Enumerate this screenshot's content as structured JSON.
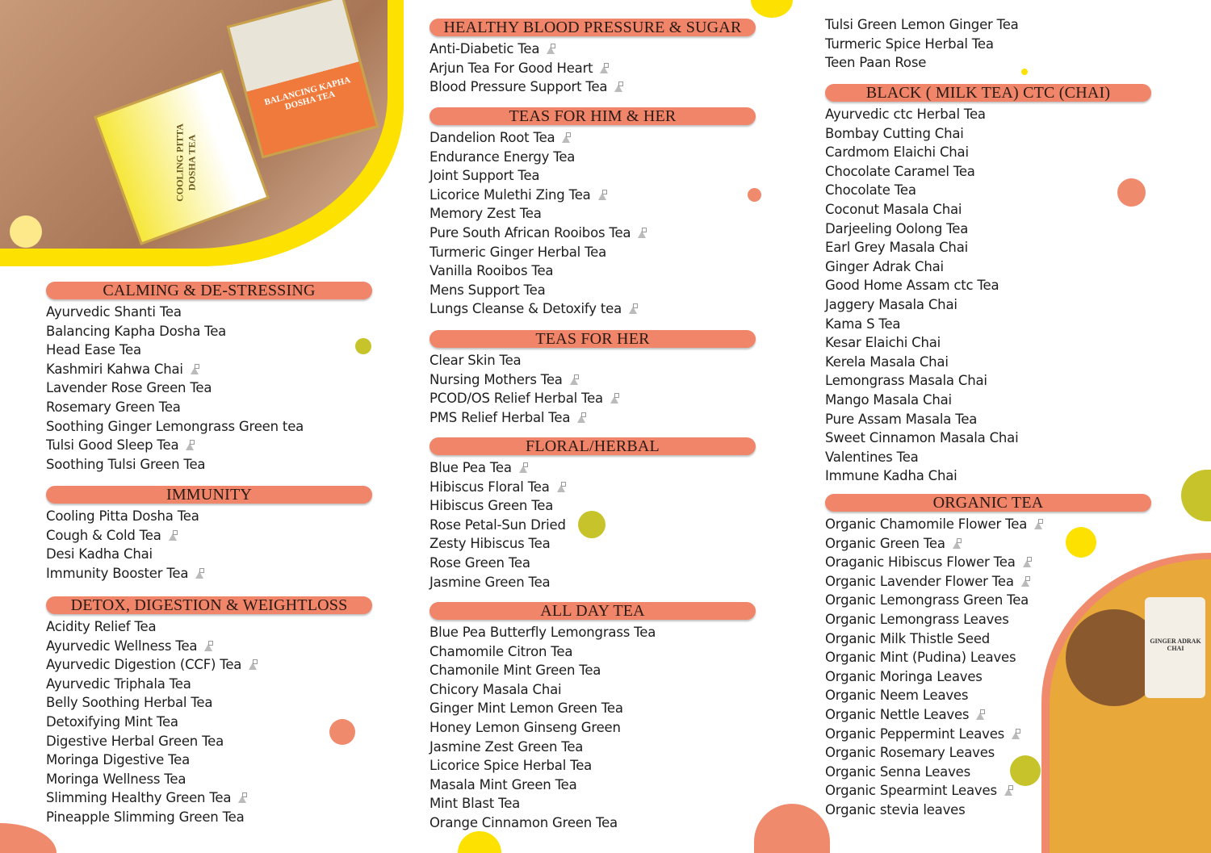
{
  "photos": {
    "top_left_tin1": "BALANCING KAPHA DOSHA TEA",
    "top_left_tin2": "COOLING PITTA DOSHA TEA",
    "bottom_right_jar": "GINGER ADRAK CHAI"
  },
  "colors": {
    "header": "#f0856a",
    "yellow": "#fde100",
    "olive": "#c7c32a",
    "coral": "#f08a6c"
  },
  "columns": [
    {
      "sections": [
        {
          "title": "CALMING & DE-STRESSING",
          "items": [
            {
              "name": "Ayurvedic Shanti Tea"
            },
            {
              "name": "Balancing Kapha Dosha Tea"
            },
            {
              "name": "Head Ease Tea"
            },
            {
              "name": "Kashmiri Kahwa Chai",
              "bag": true
            },
            {
              "name": "Lavender Rose Green Tea"
            },
            {
              "name": "Rosemary Green Tea"
            },
            {
              "name": "Soothing Ginger Lemongrass Green tea"
            },
            {
              "name": "Tulsi Good Sleep Tea",
              "bag": true
            },
            {
              "name": "Soothing Tulsi Green Tea"
            }
          ]
        },
        {
          "title": "IMMUNITY",
          "items": [
            {
              "name": "Cooling Pitta Dosha Tea"
            },
            {
              "name": "Cough & Cold Tea",
              "bag": true
            },
            {
              "name": "Desi Kadha Chai"
            },
            {
              "name": "Immunity Booster Tea",
              "bag": true
            }
          ]
        },
        {
          "title": "DETOX, DIGESTION & WEIGHTLOSS",
          "items": [
            {
              "name": "Acidity Relief Tea"
            },
            {
              "name": "Ayurvedic Wellness Tea",
              "bag": true
            },
            {
              "name": "Ayurvedic Digestion (CCF) Tea",
              "bag": true
            },
            {
              "name": "Ayurvedic Triphala Tea"
            },
            {
              "name": "Belly Soothing Herbal Tea"
            },
            {
              "name": "Detoxifying Mint Tea"
            },
            {
              "name": "Digestive Herbal Green Tea"
            },
            {
              "name": "Moringa Digestive Tea"
            },
            {
              "name": "Moringa Wellness Tea"
            },
            {
              "name": "Slimming Healthy Green Tea",
              "bag": true
            },
            {
              "name": "Pineapple Slimming Green Tea"
            }
          ]
        }
      ]
    },
    {
      "sections": [
        {
          "title": "HEALTHY BLOOD PRESSURE & SUGAR",
          "items": [
            {
              "name": "Anti-Diabetic Tea",
              "bag": true
            },
            {
              "name": "Arjun Tea For Good Heart",
              "bag": true
            },
            {
              "name": "Blood Pressure Support Tea",
              "bag": true
            }
          ]
        },
        {
          "title": "TEAS FOR HIM & HER",
          "items": [
            {
              "name": "Dandelion Root Tea",
              "bag": true
            },
            {
              "name": "Endurance Energy Tea"
            },
            {
              "name": "Joint Support Tea"
            },
            {
              "name": "Licorice Mulethi Zing Tea",
              "bag": true
            },
            {
              "name": "Memory Zest Tea"
            },
            {
              "name": "Pure South African Rooibos Tea",
              "bag": true
            },
            {
              "name": "Turmeric Ginger Herbal Tea"
            },
            {
              "name": "Vanilla Rooibos Tea"
            },
            {
              "name": "Mens Support Tea"
            },
            {
              "name": "Lungs Cleanse & Detoxify tea",
              "bag": true
            }
          ]
        },
        {
          "title": "TEAS FOR HER",
          "items": [
            {
              "name": "Clear Skin Tea"
            },
            {
              "name": "Nursing Mothers Tea",
              "bag": true
            },
            {
              "name": "PCOD/OS Relief Herbal Tea",
              "bag": true
            },
            {
              "name": "PMS Relief Herbal Tea",
              "bag": true
            }
          ]
        },
        {
          "title": "FLORAL/HERBAL",
          "items": [
            {
              "name": "Blue Pea Tea",
              "bag": true
            },
            {
              "name": "Hibiscus Floral Tea",
              "bag": true
            },
            {
              "name": "Hibiscus Green Tea"
            },
            {
              "name": "Rose Petal-Sun Dried"
            },
            {
              "name": "Zesty Hibiscus Tea"
            },
            {
              "name": "Rose Green Tea"
            },
            {
              "name": "Jasmine Green Tea"
            }
          ]
        },
        {
          "title": "ALL DAY TEA",
          "items": [
            {
              "name": "Blue Pea Butterfly Lemongrass Tea"
            },
            {
              "name": "Chamomile Citron Tea"
            },
            {
              "name": "Chamonile Mint Green Tea"
            },
            {
              "name": "Chicory Masala Chai"
            },
            {
              "name": "Ginger Mint Lemon Green Tea"
            },
            {
              "name": "Honey Lemon Ginseng Green"
            },
            {
              "name": "Jasmine Zest Green Tea"
            },
            {
              "name": "Licorice Spice Herbal Tea"
            },
            {
              "name": "Masala Mint Green Tea"
            },
            {
              "name": "Mint Blast Tea"
            },
            {
              "name": "Orange Cinnamon Green Tea"
            }
          ]
        }
      ]
    },
    {
      "sections": [
        {
          "title": "",
          "items": [
            {
              "name": "Tulsi Green Lemon Ginger Tea"
            },
            {
              "name": "Turmeric Spice Herbal Tea"
            },
            {
              "name": "Teen Paan Rose"
            }
          ]
        },
        {
          "title": "BLACK ( MILK TEA) CTC (CHAI)",
          "items": [
            {
              "name": "Ayurvedic ctc Herbal Tea"
            },
            {
              "name": "Bombay Cutting Chai"
            },
            {
              "name": "Cardmom Elaichi Chai"
            },
            {
              "name": "Chocolate Caramel Tea"
            },
            {
              "name": "Chocolate Tea"
            },
            {
              "name": "Coconut Masala Chai"
            },
            {
              "name": "Darjeeling Oolong Tea"
            },
            {
              "name": "Earl Grey Masala Chai"
            },
            {
              "name": "Ginger Adrak Chai"
            },
            {
              "name": "Good Home Assam ctc Tea"
            },
            {
              "name": "Jaggery Masala Chai"
            },
            {
              "name": "Kama S Tea"
            },
            {
              "name": "Kesar Elaichi Chai"
            },
            {
              "name": "Kerela Masala Chai"
            },
            {
              "name": "Lemongrass Masala Chai"
            },
            {
              "name": "Mango Masala Chai"
            },
            {
              "name": "Pure Assam Masala Tea"
            },
            {
              "name": "Sweet Cinnamon Masala Chai"
            },
            {
              "name": "Valentines Tea"
            },
            {
              "name": "Immune Kadha Chai"
            }
          ]
        },
        {
          "title": "ORGANIC TEA",
          "items": [
            {
              "name": "Organic Chamomile Flower Tea",
              "bag": true
            },
            {
              "name": "Organic Green Tea",
              "bag": true
            },
            {
              "name": "Oraganic Hibiscus Flower Tea",
              "bag": true
            },
            {
              "name": "Organic Lavender Flower Tea",
              "bag": true
            },
            {
              "name": "Organic Lemongrass  Green Tea"
            },
            {
              "name": "Organic Lemongrass Leaves"
            },
            {
              "name": "Organic Milk Thistle Seed"
            },
            {
              "name": "Organic Mint (Pudina) Leaves"
            },
            {
              "name": "Organic Moringa Leaves"
            },
            {
              "name": "Organic Neem Leaves"
            },
            {
              "name": "Organic Nettle Leaves",
              "bag": true
            },
            {
              "name": "Organic Peppermint Leaves",
              "bag": true
            },
            {
              "name": "Organic Rosemary Leaves"
            },
            {
              "name": "Organic Senna Leaves"
            },
            {
              "name": "Organic Spearmint Leaves",
              "bag": true
            },
            {
              "name": "Organic stevia leaves"
            }
          ]
        }
      ]
    }
  ]
}
